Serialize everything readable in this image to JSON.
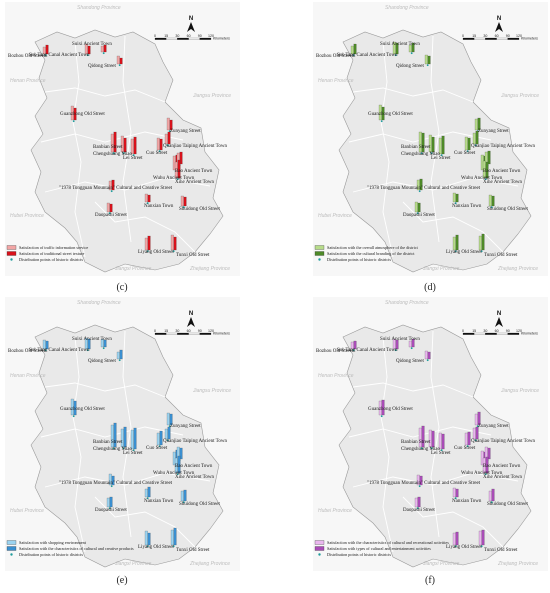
{
  "captions": [
    "(c)",
    "(d)",
    "(e)",
    "(f)"
  ],
  "place_labels": [
    "Bozhou Old Street",
    "Sui-Tang Canal Ancient Town",
    "Suixi Ancient Town",
    "Qidong Street",
    "Guanzhong Old Street",
    "Zunyang Street",
    "Banbian Street",
    "Chengshuang Miao",
    "Cuo Street",
    "Lei Street",
    "Quanjiao Taiping Ancient Town",
    "Wuhu Ancient Town",
    "Bao Ancient Town",
    "Xihe Ancient Town",
    "\"1978 Tongguan Mountain\" Cultural and Creative Street",
    "Nanxian Town",
    "Shuidong Old Street",
    "Daopashi Street",
    "Liyang Old Street",
    "Tunxi Old Street"
  ],
  "provinces": [
    "Shandong Province",
    "Henan Province",
    "Jiangsu Province",
    "Hubei Province",
    "Jiangxi Province",
    "Zhejiang Province"
  ],
  "scale": {
    "ticks": [
      "0",
      "15",
      "30",
      "60",
      "90",
      "120"
    ],
    "unit": "Kilometers"
  },
  "north": "N",
  "panels": [
    {
      "id": "c",
      "colors": [
        "#f2a5a5",
        "#d8111b"
      ],
      "legend": [
        "Satisfaction of traffic information service",
        "Satisfaction of traditional street texture",
        "Distribution points of historic districts"
      ]
    },
    {
      "id": "d",
      "colors": [
        "#b7dc8a",
        "#4e8a28"
      ],
      "legend": [
        "Satisfaction with the overall atmosphere of the district",
        "Satisfaction with the cultural branding of the district",
        "Distribution points of historic districts"
      ]
    },
    {
      "id": "e",
      "colors": [
        "#9bd3f0",
        "#3a8fd0"
      ],
      "legend": [
        "Satisfaction with shopping environment",
        "Satisfaction with the characteristics of cultural and creative products",
        "Distribution points of historic districts"
      ]
    },
    {
      "id": "f",
      "colors": [
        "#e9b6ee",
        "#a94cb7"
      ],
      "legend": [
        "Satisfaction with the characteristics of cultural and recreational activities",
        "Satisfaction with types of cultural and entertainment activities",
        "Distribution points of historic districts"
      ]
    }
  ],
  "ui": {
    "district_point_color": "#1f9c9c"
  }
}
